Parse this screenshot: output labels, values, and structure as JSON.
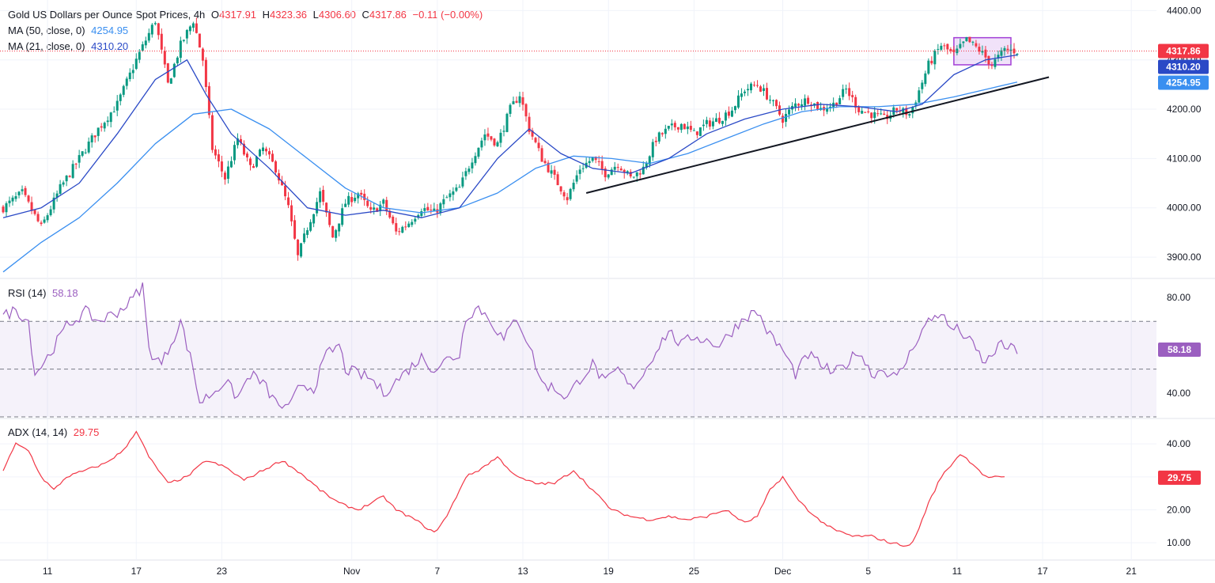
{
  "header": {
    "title": "Gold US Dollars per Ounce Spot Prices, 4h",
    "ohlc": [
      {
        "label": "O",
        "value": "4317.91"
      },
      {
        "label": "H",
        "value": "4323.36"
      },
      {
        "label": "L",
        "value": "4306.60"
      },
      {
        "label": "C",
        "value": "4317.86"
      }
    ],
    "change": "−0.11 (−0.00%)",
    "ma50_label": "MA (50, close, 0)",
    "ma50_value": "4254.95",
    "ma21_label": "MA (21, close, 0)",
    "ma21_value": "4310.20"
  },
  "rsi": {
    "label": "RSI (14)",
    "value": "58.18"
  },
  "adx": {
    "label": "ADX (14, 14)",
    "value": "29.75"
  },
  "colors": {
    "up": "#089981",
    "down": "#f23645",
    "ma21": "#2a49c6",
    "ma50": "#3a8ff0",
    "rsi": "#9b5fc0",
    "adx": "#f23645",
    "box": "#a23ed6"
  },
  "chart_data": [
    {
      "type": "candlestick",
      "name": "price",
      "ylim": [
        3860,
        4415
      ],
      "y_ticks": [
        "4400.00",
        "4300.00",
        "4200.00",
        "4100.00",
        "4000.00",
        "3900.00"
      ],
      "x_ticks": [
        "11",
        "17",
        "23",
        "Nov",
        "7",
        "13",
        "19",
        "25",
        "Dec",
        "5",
        "11",
        "17",
        "21"
      ],
      "anchors": [
        [
          0,
          4000
        ],
        [
          6,
          4030
        ],
        [
          12,
          3960
        ],
        [
          18,
          4040
        ],
        [
          24,
          4100
        ],
        [
          30,
          4160
        ],
        [
          36,
          4210
        ],
        [
          42,
          4300
        ],
        [
          48,
          4380
        ],
        [
          52,
          4250
        ],
        [
          56,
          4330
        ],
        [
          60,
          4380
        ],
        [
          63,
          4300
        ],
        [
          66,
          4120
        ],
        [
          70,
          4060
        ],
        [
          74,
          4140
        ],
        [
          78,
          4080
        ],
        [
          82,
          4120
        ],
        [
          86,
          4080
        ],
        [
          90,
          4000
        ],
        [
          93,
          3900
        ],
        [
          96,
          3960
        ],
        [
          100,
          4030
        ],
        [
          104,
          3940
        ],
        [
          108,
          4010
        ],
        [
          112,
          4030
        ],
        [
          116,
          3990
        ],
        [
          120,
          4010
        ],
        [
          124,
          3950
        ],
        [
          128,
          3970
        ],
        [
          132,
          4000
        ],
        [
          136,
          3990
        ],
        [
          140,
          4020
        ],
        [
          144,
          4040
        ],
        [
          148,
          4100
        ],
        [
          152,
          4150
        ],
        [
          156,
          4130
        ],
        [
          160,
          4200
        ],
        [
          163,
          4230
        ],
        [
          166,
          4160
        ],
        [
          170,
          4100
        ],
        [
          174,
          4060
        ],
        [
          178,
          4020
        ],
        [
          182,
          4080
        ],
        [
          186,
          4100
        ],
        [
          190,
          4070
        ],
        [
          194,
          4090
        ],
        [
          198,
          4060
        ],
        [
          202,
          4080
        ],
        [
          206,
          4140
        ],
        [
          210,
          4160
        ],
        [
          214,
          4170
        ],
        [
          218,
          4150
        ],
        [
          222,
          4170
        ],
        [
          226,
          4180
        ],
        [
          230,
          4200
        ],
        [
          234,
          4240
        ],
        [
          238,
          4250
        ],
        [
          242,
          4220
        ],
        [
          246,
          4180
        ],
        [
          250,
          4210
        ],
        [
          254,
          4220
        ],
        [
          258,
          4200
        ],
        [
          262,
          4210
        ],
        [
          266,
          4240
        ],
        [
          270,
          4200
        ],
        [
          274,
          4190
        ],
        [
          278,
          4180
        ],
        [
          282,
          4200
        ],
        [
          286,
          4190
        ],
        [
          288,
          4220
        ],
        [
          292,
          4290
        ],
        [
          296,
          4330
        ],
        [
          300,
          4310
        ],
        [
          304,
          4340
        ],
        [
          308,
          4320
        ],
        [
          312,
          4290
        ],
        [
          316,
          4320
        ],
        [
          320,
          4318
        ]
      ],
      "ma21_pts": [
        [
          0,
          3980
        ],
        [
          12,
          4000
        ],
        [
          24,
          4050
        ],
        [
          36,
          4150
        ],
        [
          48,
          4260
        ],
        [
          58,
          4300
        ],
        [
          64,
          4230
        ],
        [
          72,
          4150
        ],
        [
          84,
          4080
        ],
        [
          96,
          4000
        ],
        [
          108,
          3985
        ],
        [
          120,
          3995
        ],
        [
          132,
          3980
        ],
        [
          144,
          4000
        ],
        [
          156,
          4100
        ],
        [
          166,
          4160
        ],
        [
          176,
          4110
        ],
        [
          186,
          4080
        ],
        [
          198,
          4070
        ],
        [
          210,
          4100
        ],
        [
          222,
          4150
        ],
        [
          234,
          4180
        ],
        [
          246,
          4200
        ],
        [
          258,
          4210
        ],
        [
          270,
          4205
        ],
        [
          282,
          4195
        ],
        [
          290,
          4210
        ],
        [
          300,
          4270
        ],
        [
          310,
          4300
        ],
        [
          320,
          4310
        ]
      ],
      "ma50_pts": [
        [
          0,
          3870
        ],
        [
          12,
          3930
        ],
        [
          24,
          3980
        ],
        [
          36,
          4050
        ],
        [
          48,
          4130
        ],
        [
          60,
          4190
        ],
        [
          72,
          4200
        ],
        [
          84,
          4160
        ],
        [
          96,
          4100
        ],
        [
          108,
          4040
        ],
        [
          120,
          4000
        ],
        [
          132,
          3990
        ],
        [
          144,
          4000
        ],
        [
          156,
          4030
        ],
        [
          168,
          4080
        ],
        [
          180,
          4105
        ],
        [
          192,
          4100
        ],
        [
          204,
          4090
        ],
        [
          216,
          4110
        ],
        [
          228,
          4140
        ],
        [
          240,
          4170
        ],
        [
          252,
          4195
        ],
        [
          264,
          4205
        ],
        [
          276,
          4205
        ],
        [
          288,
          4210
        ],
        [
          300,
          4225
        ],
        [
          310,
          4240
        ],
        [
          320,
          4255
        ]
      ],
      "trendline": [
        [
          4030,
          184
        ],
        [
          4265,
          330
        ]
      ],
      "box": {
        "x": [
          300,
          318
        ],
        "y": [
          4290,
          4345
        ]
      },
      "last_price": "4317.86",
      "badges": [
        {
          "text": "4317.86",
          "value": 4317.86,
          "color": "#f23645"
        },
        {
          "text": "4310.20",
          "value": 4310.2,
          "color": "#2a49c6"
        },
        {
          "text": "4254.95",
          "value": 4254.95,
          "color": "#3a8ff0"
        }
      ]
    },
    {
      "type": "line",
      "name": "RSI (14)",
      "ylim": [
        30,
        87
      ],
      "y_ticks": [
        "80.00",
        "40.00"
      ],
      "band": [
        30,
        70
      ],
      "mid": 50,
      "anchors": [
        [
          0,
          72
        ],
        [
          4,
          75
        ],
        [
          8,
          70
        ],
        [
          10,
          48
        ],
        [
          14,
          55
        ],
        [
          20,
          68
        ],
        [
          26,
          74
        ],
        [
          30,
          70
        ],
        [
          36,
          74
        ],
        [
          40,
          78
        ],
        [
          44,
          85
        ],
        [
          46,
          58
        ],
        [
          50,
          52
        ],
        [
          56,
          70
        ],
        [
          60,
          50
        ],
        [
          62,
          36
        ],
        [
          66,
          40
        ],
        [
          70,
          45
        ],
        [
          74,
          38
        ],
        [
          78,
          48
        ],
        [
          82,
          44
        ],
        [
          86,
          36
        ],
        [
          90,
          33
        ],
        [
          94,
          44
        ],
        [
          98,
          42
        ],
        [
          102,
          56
        ],
        [
          106,
          60
        ],
        [
          108,
          50
        ],
        [
          112,
          48
        ],
        [
          116,
          46
        ],
        [
          120,
          40
        ],
        [
          124,
          45
        ],
        [
          128,
          50
        ],
        [
          132,
          55
        ],
        [
          136,
          50
        ],
        [
          140,
          54
        ],
        [
          144,
          56
        ],
        [
          146,
          72
        ],
        [
          150,
          76
        ],
        [
          154,
          70
        ],
        [
          158,
          62
        ],
        [
          162,
          72
        ],
        [
          166,
          60
        ],
        [
          170,
          44
        ],
        [
          174,
          42
        ],
        [
          178,
          38
        ],
        [
          182,
          46
        ],
        [
          186,
          52
        ],
        [
          190,
          44
        ],
        [
          194,
          50
        ],
        [
          198,
          42
        ],
        [
          202,
          48
        ],
        [
          206,
          58
        ],
        [
          210,
          66
        ],
        [
          214,
          60
        ],
        [
          218,
          64
        ],
        [
          222,
          62
        ],
        [
          226,
          60
        ],
        [
          230,
          66
        ],
        [
          234,
          72
        ],
        [
          238,
          74
        ],
        [
          242,
          64
        ],
        [
          246,
          58
        ],
        [
          250,
          48
        ],
        [
          254,
          56
        ],
        [
          258,
          52
        ],
        [
          262,
          48
        ],
        [
          266,
          52
        ],
        [
          270,
          58
        ],
        [
          274,
          48
        ],
        [
          278,
          50
        ],
        [
          282,
          46
        ],
        [
          286,
          56
        ],
        [
          288,
          62
        ],
        [
          292,
          70
        ],
        [
          296,
          74
        ],
        [
          298,
          68
        ],
        [
          302,
          66
        ],
        [
          306,
          60
        ],
        [
          310,
          52
        ],
        [
          314,
          60
        ],
        [
          320,
          58
        ]
      ]
    },
    {
      "type": "line",
      "name": "ADX (14, 14)",
      "ylim": [
        5,
        47
      ],
      "y_ticks": [
        "40.00",
        "30.00",
        "20.00",
        "10.00"
      ],
      "anchors": [
        [
          0,
          32
        ],
        [
          4,
          40
        ],
        [
          8,
          38
        ],
        [
          12,
          30
        ],
        [
          16,
          26
        ],
        [
          20,
          30
        ],
        [
          26,
          32
        ],
        [
          32,
          34
        ],
        [
          38,
          38
        ],
        [
          42,
          44
        ],
        [
          46,
          36
        ],
        [
          52,
          28
        ],
        [
          58,
          30
        ],
        [
          64,
          35
        ],
        [
          70,
          33
        ],
        [
          76,
          29
        ],
        [
          82,
          32
        ],
        [
          88,
          35
        ],
        [
          94,
          31
        ],
        [
          100,
          26
        ],
        [
          106,
          22
        ],
        [
          112,
          20
        ],
        [
          116,
          22
        ],
        [
          120,
          24
        ],
        [
          124,
          20
        ],
        [
          130,
          17
        ],
        [
          136,
          13
        ],
        [
          140,
          18
        ],
        [
          146,
          30
        ],
        [
          150,
          32
        ],
        [
          156,
          36
        ],
        [
          162,
          30
        ],
        [
          168,
          28
        ],
        [
          174,
          28
        ],
        [
          180,
          32
        ],
        [
          186,
          26
        ],
        [
          192,
          20
        ],
        [
          198,
          18
        ],
        [
          204,
          17
        ],
        [
          210,
          18
        ],
        [
          216,
          17
        ],
        [
          222,
          18
        ],
        [
          228,
          20
        ],
        [
          234,
          16
        ],
        [
          238,
          18
        ],
        [
          242,
          26
        ],
        [
          246,
          30
        ],
        [
          250,
          24
        ],
        [
          256,
          18
        ],
        [
          262,
          14
        ],
        [
          268,
          12
        ],
        [
          274,
          12
        ],
        [
          280,
          10
        ],
        [
          286,
          9
        ],
        [
          288,
          12
        ],
        [
          292,
          22
        ],
        [
          296,
          30
        ],
        [
          302,
          37
        ],
        [
          306,
          34
        ],
        [
          310,
          30
        ],
        [
          316,
          29.75
        ]
      ]
    }
  ]
}
